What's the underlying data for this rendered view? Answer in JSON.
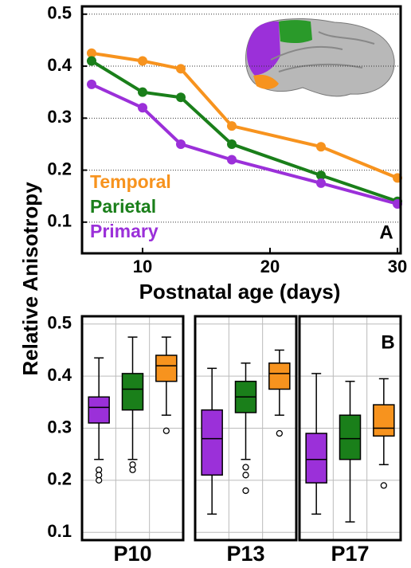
{
  "chart_data": [
    {
      "type": "line",
      "ylabel": "Relative Anisotropy",
      "xlabel": "Postnatal age (days)",
      "panel_label": "A",
      "xlim": [
        5.25,
        30.25
      ],
      "xticks": [
        10,
        20,
        30
      ],
      "ylim": [
        0.04,
        0.515
      ],
      "yticks": [
        0.1,
        0.2,
        0.3,
        0.4,
        0.5
      ],
      "grid": true,
      "x": [
        6,
        10,
        13,
        17,
        24,
        30
      ],
      "series": [
        {
          "name": "Temporal",
          "color": "#f7931e",
          "values": [
            0.425,
            0.41,
            0.395,
            0.285,
            0.245,
            0.185
          ]
        },
        {
          "name": "Parietal",
          "color": "#1a7f1a",
          "values": [
            0.41,
            0.35,
            0.34,
            0.25,
            0.19,
            0.14
          ]
        },
        {
          "name": "Primary",
          "color": "#9b30d9",
          "values": [
            0.365,
            0.32,
            0.25,
            0.22,
            0.175,
            0.135
          ]
        }
      ]
    },
    {
      "type": "box",
      "panel_label": "B",
      "ylim": [
        0.085,
        0.515
      ],
      "yticks": [
        0.1,
        0.2,
        0.3,
        0.4,
        0.5
      ],
      "grid": true,
      "groups": [
        {
          "label": "P10",
          "boxes": [
            {
              "color": "#9b30d9",
              "whisker_low": 0.24,
              "q1": 0.31,
              "median": 0.34,
              "q3": 0.36,
              "whisker_high": 0.435,
              "outliers": [
                0.22,
                0.21,
                0.2
              ]
            },
            {
              "color": "#1a7f1a",
              "whisker_low": 0.24,
              "q1": 0.335,
              "median": 0.375,
              "q3": 0.405,
              "whisker_high": 0.475,
              "outliers": [
                0.23,
                0.22
              ]
            },
            {
              "color": "#f7931e",
              "whisker_low": 0.325,
              "q1": 0.39,
              "median": 0.42,
              "q3": 0.44,
              "whisker_high": 0.475,
              "outliers": [
                0.295
              ]
            }
          ]
        },
        {
          "label": "P13",
          "boxes": [
            {
              "color": "#9b30d9",
              "whisker_low": 0.135,
              "q1": 0.21,
              "median": 0.28,
              "q3": 0.335,
              "whisker_high": 0.415,
              "outliers": []
            },
            {
              "color": "#1a7f1a",
              "whisker_low": 0.24,
              "q1": 0.33,
              "median": 0.36,
              "q3": 0.39,
              "whisker_high": 0.425,
              "outliers": [
                0.225,
                0.21,
                0.18
              ]
            },
            {
              "color": "#f7931e",
              "whisker_low": 0.325,
              "q1": 0.375,
              "median": 0.405,
              "q3": 0.425,
              "whisker_high": 0.45,
              "outliers": [
                0.29
              ]
            }
          ]
        },
        {
          "label": "P17",
          "boxes": [
            {
              "color": "#9b30d9",
              "whisker_low": 0.135,
              "q1": 0.195,
              "median": 0.24,
              "q3": 0.29,
              "whisker_high": 0.405,
              "outliers": []
            },
            {
              "color": "#1a7f1a",
              "whisker_low": 0.12,
              "q1": 0.24,
              "median": 0.28,
              "q3": 0.325,
              "whisker_high": 0.39,
              "outliers": []
            },
            {
              "color": "#f7931e",
              "whisker_low": 0.23,
              "q1": 0.285,
              "median": 0.3,
              "q3": 0.345,
              "whisker_high": 0.395,
              "outliers": [
                0.19
              ]
            }
          ]
        }
      ]
    }
  ]
}
